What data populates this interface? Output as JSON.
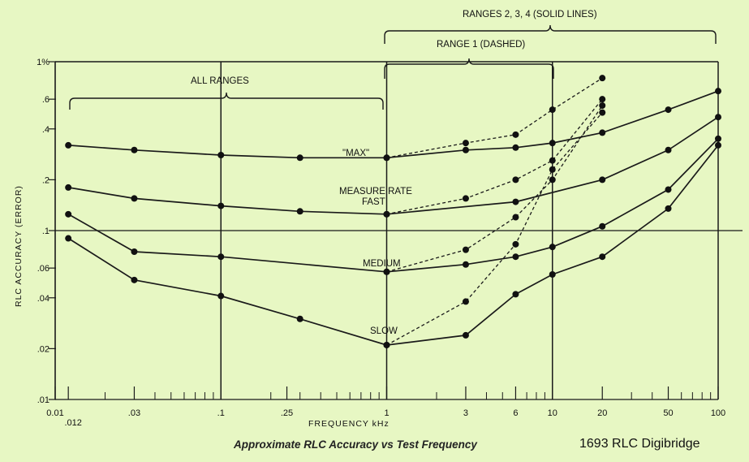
{
  "caption": "Approximate RLC Accuracy vs Test Frequency",
  "product": "1693 RLC Digibridge",
  "chart_data": {
    "type": "line",
    "xlabel": "FREQUENCY kHz",
    "ylabel": "RLC ACCURACY (ERROR)",
    "x_scale": "log",
    "y_scale": "log",
    "xlim": [
      0.01,
      100
    ],
    "ylim": [
      0.01,
      1
    ],
    "x_ticks": [
      {
        "v": 0.01,
        "label": "0.01"
      },
      {
        "v": 0.012,
        "label": ".012"
      },
      {
        "v": 0.03,
        "label": ".03"
      },
      {
        "v": 0.1,
        "label": ".1"
      },
      {
        "v": 0.25,
        "label": ".25"
      },
      {
        "v": 1,
        "label": "1"
      },
      {
        "v": 3,
        "label": "3"
      },
      {
        "v": 6,
        "label": "6"
      },
      {
        "v": 10,
        "label": "10"
      },
      {
        "v": 20,
        "label": "20"
      },
      {
        "v": 50,
        "label": "50"
      },
      {
        "v": 100,
        "label": "100"
      }
    ],
    "y_ticks": [
      {
        "v": 1,
        "label": "1%"
      },
      {
        "v": 0.6,
        "label": ".6"
      },
      {
        "v": 0.4,
        "label": ".4"
      },
      {
        "v": 0.2,
        "label": ".2"
      },
      {
        "v": 0.1,
        "label": ".1"
      },
      {
        "v": 0.06,
        "label": ".06"
      },
      {
        "v": 0.04,
        "label": ".04"
      },
      {
        "v": 0.02,
        "label": ".02"
      },
      {
        "v": 0.01,
        "label": ".01"
      }
    ],
    "vertical_grid": [
      0.1,
      1,
      10,
      100
    ],
    "horizontal_grid": [
      0.1
    ],
    "series": [
      {
        "name": "\"MAX\"",
        "style": "solid",
        "x": [
          0.012,
          0.03,
          0.1,
          0.3,
          1,
          3,
          6,
          10,
          20,
          50,
          100
        ],
        "y": [
          0.32,
          0.3,
          0.28,
          0.27,
          0.27,
          0.3,
          0.31,
          0.33,
          0.38,
          0.52,
          0.67
        ]
      },
      {
        "name": "MEASURE RATE FAST",
        "style": "solid",
        "x": [
          0.012,
          0.03,
          0.1,
          0.3,
          1,
          6,
          20,
          50,
          100
        ],
        "y": [
          0.18,
          0.155,
          0.14,
          0.13,
          0.125,
          0.148,
          0.2,
          0.3,
          0.47
        ]
      },
      {
        "name": "MEDIUM",
        "style": "solid",
        "x": [
          0.012,
          0.03,
          0.1,
          1,
          3,
          6,
          10,
          20,
          50,
          100
        ],
        "y": [
          0.125,
          0.075,
          0.07,
          0.057,
          0.063,
          0.07,
          0.08,
          0.106,
          0.175,
          0.35
        ]
      },
      {
        "name": "SLOW",
        "style": "solid",
        "x": [
          0.012,
          0.03,
          0.1,
          0.3,
          1,
          3,
          6,
          10,
          20,
          50,
          100
        ],
        "y": [
          0.09,
          0.051,
          0.041,
          0.03,
          0.021,
          0.024,
          0.042,
          0.055,
          0.07,
          0.135,
          0.32
        ]
      },
      {
        "name": "",
        "style": "dashed",
        "x": [
          1,
          3,
          6,
          10,
          20
        ],
        "y": [
          0.27,
          0.33,
          0.37,
          0.52,
          0.8
        ]
      },
      {
        "name": "",
        "style": "dashed",
        "x": [
          1,
          3,
          6,
          10,
          20
        ],
        "y": [
          0.125,
          0.155,
          0.2,
          0.26,
          0.6
        ]
      },
      {
        "name": "",
        "style": "dashed",
        "x": [
          1,
          3,
          6,
          10,
          20
        ],
        "y": [
          0.057,
          0.077,
          0.12,
          0.2,
          0.55
        ]
      },
      {
        "name": "",
        "style": "dashed",
        "x": [
          1,
          3,
          6,
          10,
          20
        ],
        "y": [
          0.021,
          0.038,
          0.083,
          0.23,
          0.5
        ]
      }
    ],
    "annotations": {
      "max_label": "\"MAX\"",
      "rate_label": "MEASURE RATE",
      "fast_label": "FAST",
      "medium_label": "MEDIUM",
      "slow_label": "SLOW",
      "all_ranges": "ALL RANGES",
      "range1": "RANGE 1 (DASHED)",
      "ranges234": "RANGES 2, 3, 4 (SOLID LINES)"
    },
    "minor_ticks": [
      0.02,
      0.04,
      0.05,
      0.06,
      0.07,
      0.08,
      0.09,
      0.2,
      0.3,
      0.4,
      0.5,
      0.6,
      0.7,
      0.8,
      0.9,
      2,
      4,
      5,
      7,
      8,
      9,
      30,
      40,
      60,
      70,
      80,
      90
    ]
  }
}
